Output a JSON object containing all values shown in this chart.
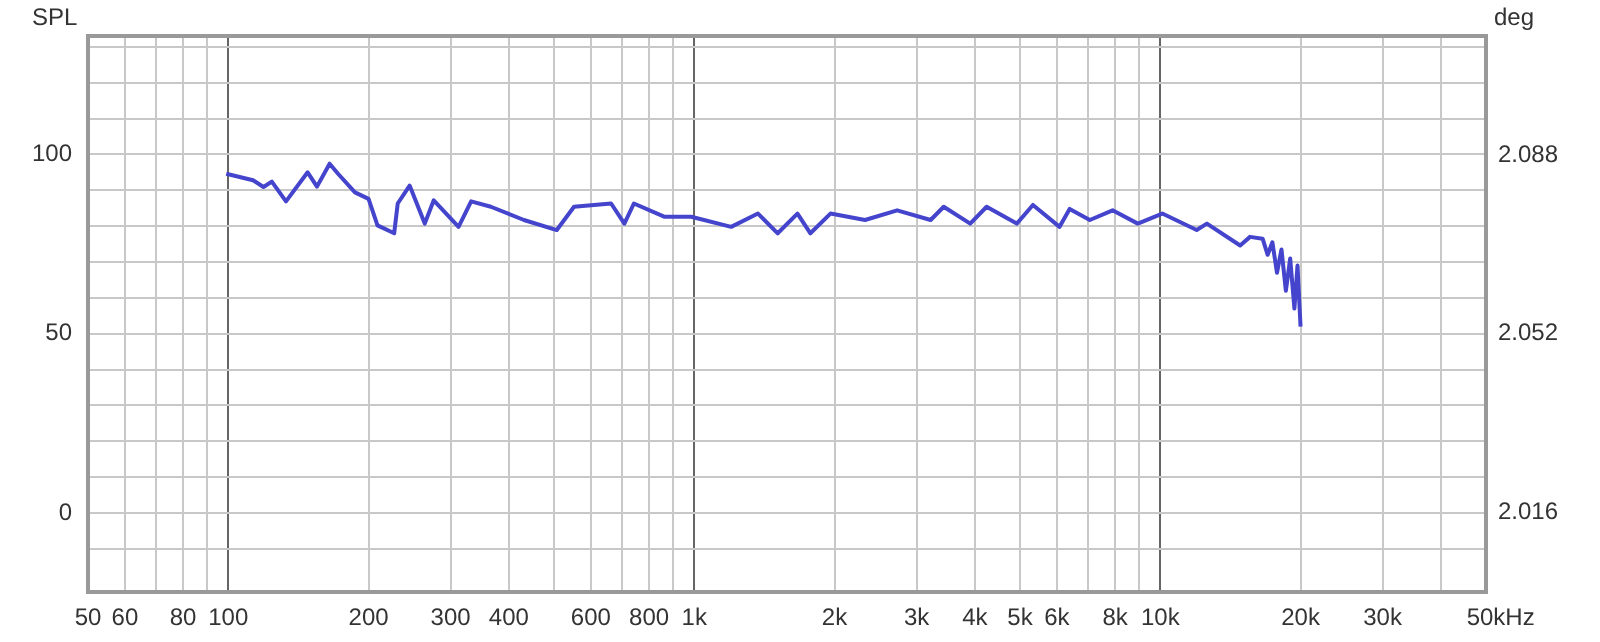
{
  "chart_data": {
    "type": "line",
    "ylabel": "SPL",
    "y2label": "deg",
    "log": "x",
    "grid": true,
    "legend": false,
    "marker": "none",
    "line_style": "solid",
    "xlim": [
      50,
      50000
    ],
    "xticks": [
      50,
      60,
      {
        "value": 70,
        "label": null
      },
      80,
      {
        "value": 90,
        "label": null
      },
      100,
      200,
      300,
      400,
      {
        "value": 500,
        "label": null
      },
      600,
      {
        "value": 700,
        "label": null
      },
      800,
      {
        "value": 900,
        "label": null
      },
      {
        "value": 1000,
        "label": "1k"
      },
      {
        "value": 2000,
        "label": "2k"
      },
      {
        "value": 3000,
        "label": "3k"
      },
      {
        "value": 4000,
        "label": "4k"
      },
      {
        "value": 5000,
        "label": "5k"
      },
      {
        "value": 6000,
        "label": "6k"
      },
      {
        "value": 7000,
        "label": null
      },
      {
        "value": 8000,
        "label": "8k"
      },
      {
        "value": 9000,
        "label": null
      },
      {
        "value": 10000,
        "label": "10k"
      },
      {
        "value": 20000,
        "label": "20k"
      },
      {
        "value": 30000,
        "label": "30k"
      },
      {
        "value": 40000,
        "label": null
      },
      {
        "value": 50000,
        "label": "50k"
      }
    ],
    "xlabel": "Hz",
    "ylim": [
      -22,
      133
    ],
    "yticks": [
      {
        "value": -10,
        "label": null
      },
      0,
      {
        "value": 10,
        "label": null
      },
      {
        "value": 20,
        "label": null
      },
      {
        "value": 30,
        "label": null
      },
      {
        "value": 40,
        "label": null
      },
      50,
      {
        "value": 60,
        "label": null
      },
      {
        "value": 70,
        "label": null
      },
      {
        "value": 80,
        "label": null
      },
      {
        "value": 90,
        "label": null
      },
      100,
      {
        "value": 110,
        "label": null
      },
      {
        "value": 120,
        "label": null
      },
      {
        "value": 130,
        "label": null
      }
    ],
    "y2lim": [
      2.0,
      2.112
    ],
    "y2ticks": [
      2.016,
      2.052,
      2.088
    ],
    "series": [
      {
        "color": "#4444cc",
        "x": [
          99,
          113,
          119,
          124,
          133,
          148,
          155,
          165,
          172,
          187,
          200,
          209,
          227,
          231,
          245,
          264,
          276,
          312,
          332,
          366,
          431,
          507,
          552,
          663,
          708,
          742,
          864,
          985,
          1200,
          1370,
          1510,
          1665,
          1775,
          1960,
          2325,
          2725,
          3215,
          3430,
          3910,
          4240,
          4920,
          5330,
          6080,
          6390,
          7060,
          7900,
          8950,
          10100,
          11970,
          12590,
          14840,
          15580,
          16580,
          17000,
          17400,
          17800,
          18200,
          18600,
          19000,
          19400,
          19700,
          20000
        ],
        "values": [
          94.6,
          92.8,
          90.9,
          92.4,
          86.9,
          95,
          91,
          97.4,
          94.6,
          89.4,
          87.6,
          80.2,
          78,
          86.3,
          91.3,
          80.7,
          87.2,
          79.8,
          86.9,
          85.4,
          81.7,
          78.9,
          85.4,
          86.3,
          80.7,
          86.3,
          82.6,
          82.6,
          79.8,
          83.5,
          78,
          83.5,
          78,
          83.5,
          81.7,
          84.4,
          81.7,
          85.4,
          80.7,
          85.4,
          80.7,
          85.9,
          79.8,
          84.8,
          81.7,
          84.4,
          80.7,
          83.5,
          78.9,
          80.7,
          74.6,
          77,
          76.5,
          72,
          75.5,
          67,
          73.5,
          62,
          71,
          57,
          69,
          52
        ]
      }
    ]
  }
}
